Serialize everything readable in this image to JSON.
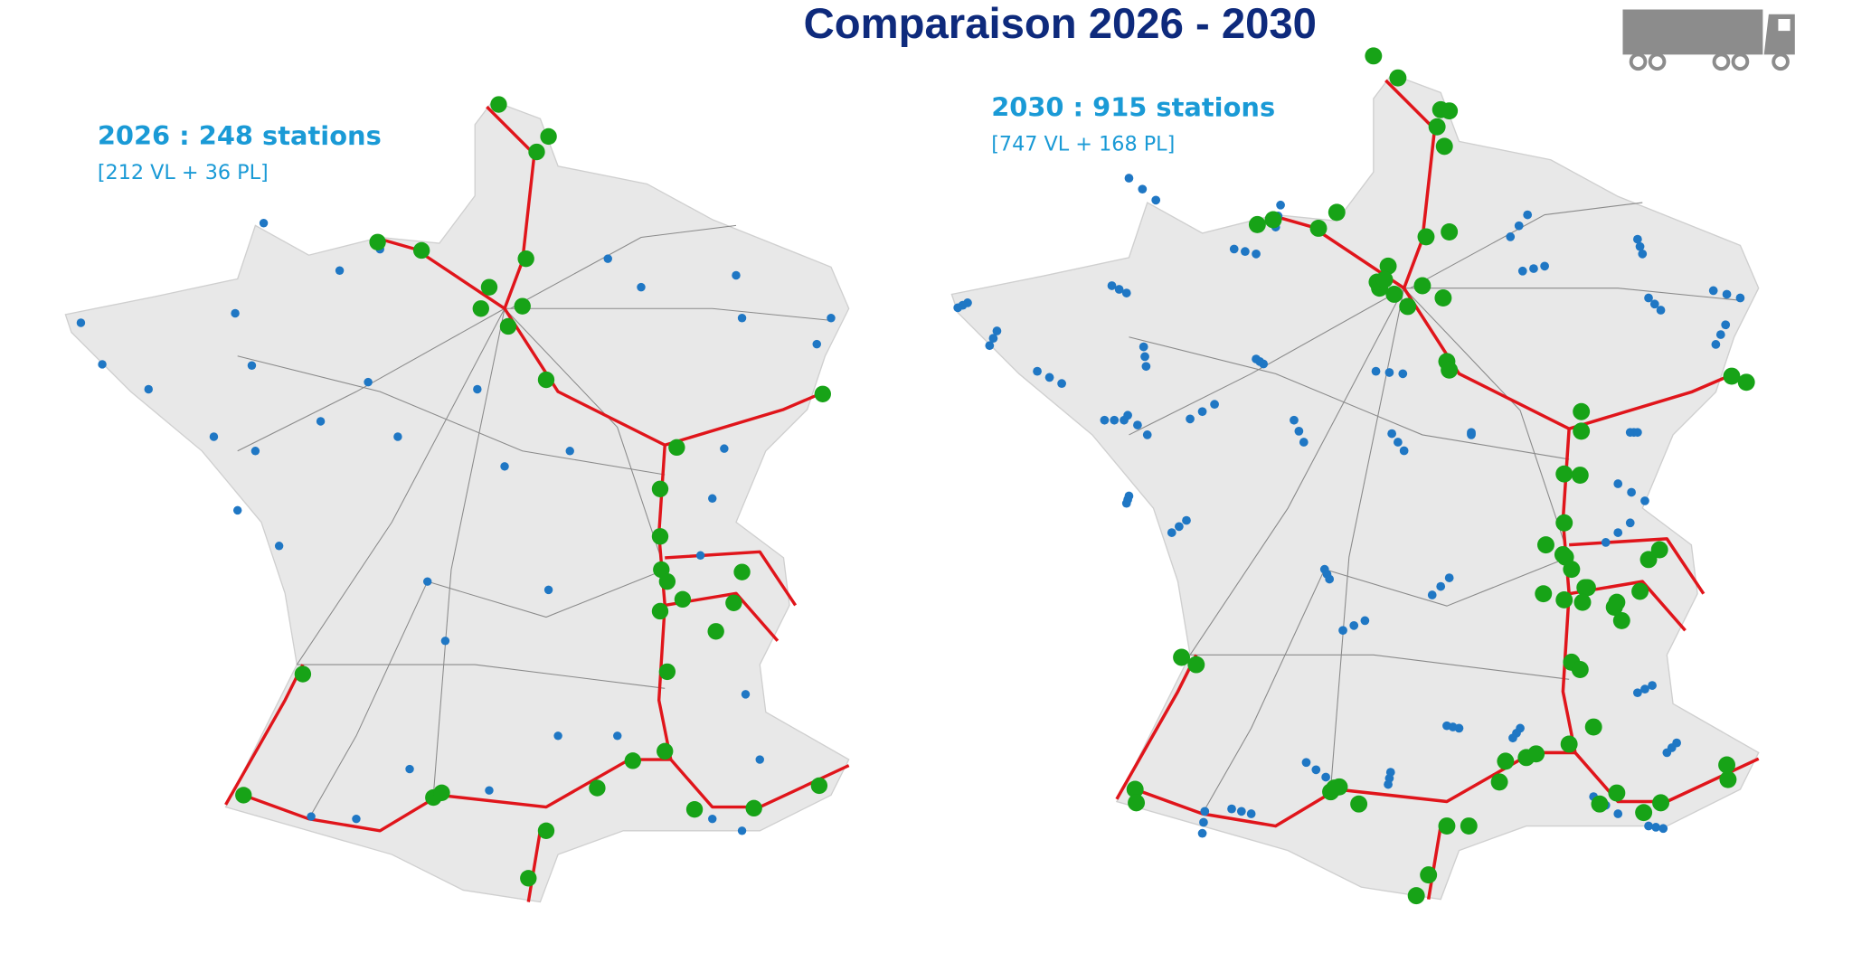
{
  "header": {
    "title": "Comparaison 2026 - 2030"
  },
  "panels": [
    {
      "heading": "2026 : 248 stations",
      "detail": "[212 VL + 36 PL]"
    },
    {
      "heading": "2030 : 915 stations",
      "detail": "[747 VL + 168 PL]"
    }
  ]
}
